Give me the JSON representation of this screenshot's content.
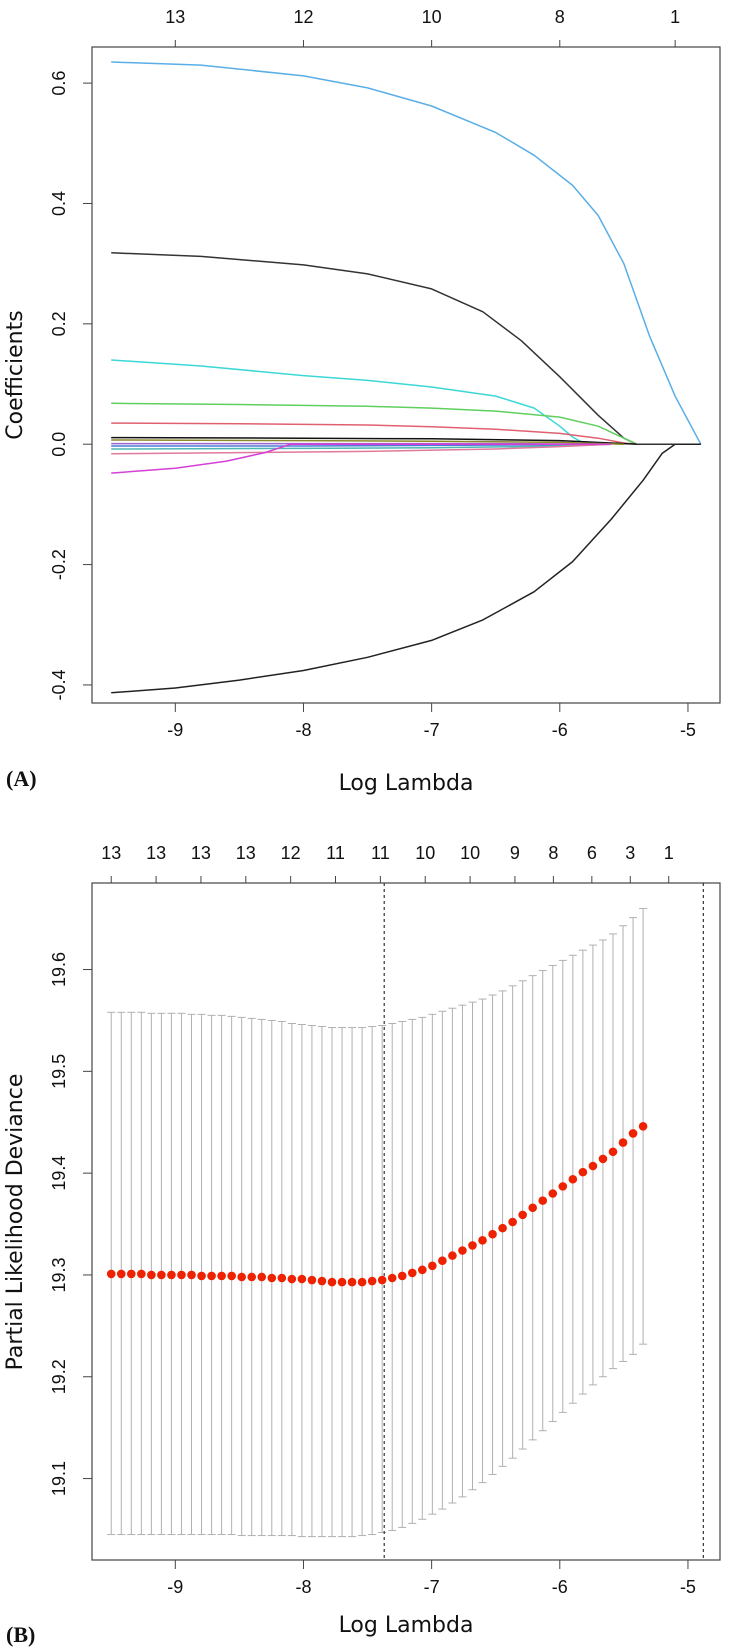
{
  "chart_data": [
    {
      "id": "A",
      "panel_label": "(A)",
      "type": "line",
      "xlabel": "Log Lambda",
      "ylabel": "Coefficients",
      "xlim": [
        -9.65,
        -4.75
      ],
      "ylim": [
        -0.43,
        0.66
      ],
      "x_ticks": [
        -9,
        -8,
        -7,
        -6,
        -5
      ],
      "y_ticks": [
        -0.4,
        -0.2,
        0.0,
        0.2,
        0.4,
        0.6
      ],
      "y_tick_labels": [
        "-0.4",
        "-0.2",
        "0.0",
        "0.2",
        "0.4",
        "0.6"
      ],
      "top_axis": {
        "positions": [
          -9,
          -8,
          -7,
          -6,
          -5.1
        ],
        "labels": [
          "13",
          "12",
          "10",
          "8",
          "1"
        ]
      },
      "series": [
        {
          "name": "blue",
          "color": "#5aaee6",
          "points": [
            [
              -9.5,
              0.635
            ],
            [
              -8.8,
              0.63
            ],
            [
              -8.0,
              0.612
            ],
            [
              -7.5,
              0.592
            ],
            [
              -7.0,
              0.562
            ],
            [
              -6.5,
              0.518
            ],
            [
              -6.2,
              0.48
            ],
            [
              -5.9,
              0.43
            ],
            [
              -5.7,
              0.38
            ],
            [
              -5.5,
              0.3
            ],
            [
              -5.3,
              0.18
            ],
            [
              -5.1,
              0.08
            ],
            [
              -4.9,
              0.0
            ]
          ]
        },
        {
          "name": "black-positive",
          "color": "#333333",
          "points": [
            [
              -9.5,
              0.318
            ],
            [
              -8.8,
              0.312
            ],
            [
              -8.0,
              0.298
            ],
            [
              -7.5,
              0.283
            ],
            [
              -7.0,
              0.258
            ],
            [
              -6.6,
              0.22
            ],
            [
              -6.3,
              0.172
            ],
            [
              -6.0,
              0.112
            ],
            [
              -5.7,
              0.048
            ],
            [
              -5.5,
              0.01
            ],
            [
              -5.4,
              0.0
            ],
            [
              -4.9,
              0.0
            ]
          ]
        },
        {
          "name": "cyan",
          "color": "#3cd7d7",
          "points": [
            [
              -9.5,
              0.14
            ],
            [
              -8.8,
              0.13
            ],
            [
              -8.0,
              0.114
            ],
            [
              -7.5,
              0.106
            ],
            [
              -7.0,
              0.095
            ],
            [
              -6.5,
              0.08
            ],
            [
              -6.2,
              0.06
            ],
            [
              -6.0,
              0.03
            ],
            [
              -5.9,
              0.012
            ],
            [
              -5.8,
              0.0
            ]
          ]
        },
        {
          "name": "green",
          "color": "#5fcf5f",
          "points": [
            [
              -9.5,
              0.068
            ],
            [
              -8.5,
              0.066
            ],
            [
              -7.5,
              0.063
            ],
            [
              -7.0,
              0.06
            ],
            [
              -6.5,
              0.055
            ],
            [
              -6.0,
              0.045
            ],
            [
              -5.7,
              0.03
            ],
            [
              -5.5,
              0.01
            ],
            [
              -5.4,
              0.0
            ]
          ]
        },
        {
          "name": "red",
          "color": "#e06070",
          "points": [
            [
              -9.5,
              0.035
            ],
            [
              -8.5,
              0.034
            ],
            [
              -7.5,
              0.032
            ],
            [
              -7.0,
              0.029
            ],
            [
              -6.5,
              0.025
            ],
            [
              -6.0,
              0.018
            ],
            [
              -5.7,
              0.01
            ],
            [
              -5.5,
              0.002
            ],
            [
              -5.4,
              0.0
            ]
          ]
        },
        {
          "name": "black-small",
          "color": "#111111",
          "points": [
            [
              -9.5,
              0.011
            ],
            [
              -8.0,
              0.01
            ],
            [
              -7.0,
              0.009
            ],
            [
              -6.0,
              0.006
            ],
            [
              -5.5,
              0.001
            ],
            [
              -5.4,
              0.0
            ]
          ]
        },
        {
          "name": "olive",
          "color": "#8a8a2a",
          "points": [
            [
              -9.5,
              0.007
            ],
            [
              -8.0,
              0.006
            ],
            [
              -7.0,
              0.005
            ],
            [
              -6.0,
              0.003
            ],
            [
              -5.5,
              0.0
            ]
          ]
        },
        {
          "name": "purple",
          "color": "#9966cc",
          "points": [
            [
              -9.5,
              0.001
            ],
            [
              -8.0,
              0.001
            ],
            [
              -6.5,
              0.001
            ],
            [
              -5.6,
              0.0
            ]
          ]
        },
        {
          "name": "blue-small",
          "color": "#4a7bd8",
          "points": [
            [
              -9.5,
              -0.003
            ],
            [
              -8.0,
              -0.003
            ],
            [
              -7.0,
              -0.002
            ],
            [
              -6.0,
              -0.001
            ],
            [
              -5.6,
              0.0
            ]
          ]
        },
        {
          "name": "teal",
          "color": "#4fb6b6",
          "points": [
            [
              -9.5,
              -0.008
            ],
            [
              -8.0,
              -0.007
            ],
            [
              -7.0,
              -0.006
            ],
            [
              -6.0,
              -0.003
            ],
            [
              -5.6,
              0.0
            ]
          ]
        },
        {
          "name": "pink",
          "color": "#e07a9a",
          "points": [
            [
              -9.5,
              -0.016
            ],
            [
              -8.5,
              -0.014
            ],
            [
              -7.5,
              -0.012
            ],
            [
              -6.5,
              -0.008
            ],
            [
              -6.0,
              -0.004
            ],
            [
              -5.6,
              0.0
            ]
          ]
        },
        {
          "name": "magenta",
          "color": "#d63fd6",
          "points": [
            [
              -9.5,
              -0.048
            ],
            [
              -9.0,
              -0.04
            ],
            [
              -8.6,
              -0.028
            ],
            [
              -8.3,
              -0.014
            ],
            [
              -8.1,
              0.0
            ],
            [
              -5.6,
              0.0
            ]
          ]
        },
        {
          "name": "black-negative",
          "color": "#222222",
          "points": [
            [
              -9.5,
              -0.413
            ],
            [
              -9.0,
              -0.405
            ],
            [
              -8.5,
              -0.392
            ],
            [
              -8.0,
              -0.376
            ],
            [
              -7.5,
              -0.354
            ],
            [
              -7.0,
              -0.326
            ],
            [
              -6.6,
              -0.292
            ],
            [
              -6.2,
              -0.245
            ],
            [
              -5.9,
              -0.195
            ],
            [
              -5.6,
              -0.125
            ],
            [
              -5.35,
              -0.06
            ],
            [
              -5.2,
              -0.015
            ],
            [
              -5.1,
              0.0
            ],
            [
              -4.9,
              0.0
            ]
          ]
        }
      ]
    },
    {
      "id": "B",
      "panel_label": "(B)",
      "type": "scatter",
      "xlabel": "Log Lambda",
      "ylabel": "Partial Likelihood Deviance",
      "xlim": [
        -9.65,
        -4.75
      ],
      "ylim": [
        19.02,
        19.685
      ],
      "x_ticks": [
        -9,
        -8,
        -7,
        -6,
        -5
      ],
      "y_ticks": [
        19.1,
        19.2,
        19.3,
        19.4,
        19.5,
        19.6
      ],
      "y_tick_labels": [
        "19.1",
        "19.2",
        "19.3",
        "19.4",
        "19.5",
        "19.6"
      ],
      "top_axis": {
        "positions": [
          -9.5,
          -9.15,
          -8.8,
          -8.45,
          -8.1,
          -7.75,
          -7.4,
          -7.05,
          -6.7,
          -6.35,
          -6.05,
          -5.75,
          -5.45,
          -5.15
        ],
        "labels": [
          "13",
          "13",
          "13",
          "13",
          "12",
          "11",
          "11",
          "10",
          "10",
          "9",
          "8",
          "6",
          "3",
          "1"
        ]
      },
      "vlines": [
        -7.37,
        -4.88
      ],
      "x_start": -9.5,
      "x_step": 0.0783,
      "mean": [
        19.301,
        19.301,
        19.301,
        19.301,
        19.3,
        19.3,
        19.3,
        19.3,
        19.3,
        19.299,
        19.299,
        19.299,
        19.299,
        19.298,
        19.298,
        19.298,
        19.297,
        19.297,
        19.296,
        19.296,
        19.295,
        19.294,
        19.293,
        19.293,
        19.293,
        19.293,
        19.294,
        19.295,
        19.297,
        19.299,
        19.302,
        19.305,
        19.309,
        19.314,
        19.319,
        19.324,
        19.329,
        19.334,
        19.34,
        19.346,
        19.352,
        19.359,
        19.366,
        19.373,
        19.38,
        19.387,
        19.394,
        19.401,
        19.407,
        19.414,
        19.421,
        19.43,
        19.439,
        19.446
      ],
      "upper": [
        19.558,
        19.558,
        19.558,
        19.558,
        19.557,
        19.557,
        19.557,
        19.557,
        19.556,
        19.556,
        19.555,
        19.555,
        19.554,
        19.553,
        19.552,
        19.551,
        19.55,
        19.549,
        19.547,
        19.546,
        19.545,
        19.544,
        19.543,
        19.543,
        19.543,
        19.543,
        19.544,
        19.545,
        19.547,
        19.549,
        19.551,
        19.553,
        19.556,
        19.559,
        19.562,
        19.565,
        19.568,
        19.571,
        19.575,
        19.579,
        19.584,
        19.589,
        19.594,
        19.599,
        19.604,
        19.609,
        19.614,
        19.619,
        19.624,
        19.629,
        19.635,
        19.643,
        19.651,
        19.66
      ],
      "lower": [
        19.045,
        19.045,
        19.045,
        19.045,
        19.045,
        19.045,
        19.045,
        19.045,
        19.045,
        19.045,
        19.045,
        19.045,
        19.045,
        19.044,
        19.044,
        19.044,
        19.044,
        19.044,
        19.044,
        19.043,
        19.043,
        19.043,
        19.043,
        19.043,
        19.043,
        19.044,
        19.045,
        19.047,
        19.049,
        19.052,
        19.056,
        19.06,
        19.065,
        19.07,
        19.076,
        19.082,
        19.089,
        19.096,
        19.104,
        19.112,
        19.12,
        19.129,
        19.138,
        19.147,
        19.156,
        19.165,
        19.174,
        19.183,
        19.192,
        19.2,
        19.208,
        19.215,
        19.222,
        19.232
      ]
    }
  ],
  "colors": {
    "points": "#ee2200",
    "error_bars": "#b0b0b0",
    "axis": "#444444"
  }
}
